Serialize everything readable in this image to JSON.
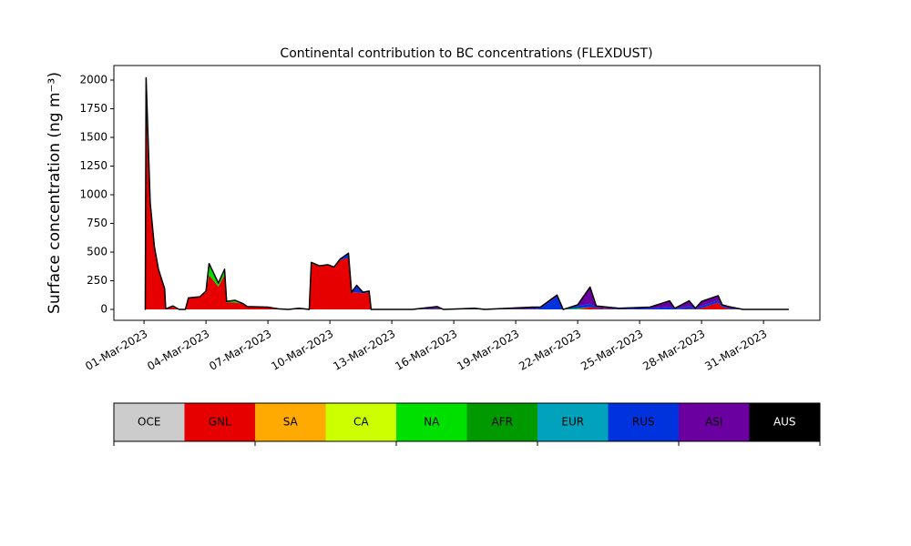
{
  "chart_data": {
    "type": "stacked_area",
    "title": "Continental contribution to BC concentrations (FLEXDUST)",
    "y_label": "Surface concentration (ng m⁻³)",
    "x": [
      0.06,
      0.1,
      0.3,
      0.5,
      0.7,
      1.0,
      1.05,
      1.4,
      1.7,
      2.0,
      2.15,
      2.7,
      3.0,
      3.15,
      3.6,
      3.9,
      4.0,
      4.4,
      4.8,
      5.0,
      6.0,
      6.5,
      7.0,
      7.5,
      8.0,
      8.1,
      8.5,
      8.9,
      9.2,
      9.5,
      9.9,
      10.05,
      10.3,
      10.6,
      10.9,
      11.0,
      13.0,
      14.2,
      14.5,
      16.0,
      16.5,
      18.8,
      19.2,
      20.0,
      20.3,
      21.0,
      21.6,
      21.9,
      23.0,
      24.5,
      25.45,
      25.7,
      26.4,
      26.7,
      27.0,
      27.8,
      28.0,
      28.3,
      29.0,
      31.2
    ],
    "xlim": [
      -1.46,
      32.73
    ],
    "xticks": [
      {
        "value": 0,
        "label": "01-Mar-2023"
      },
      {
        "value": 3,
        "label": "04-Mar-2023"
      },
      {
        "value": 6,
        "label": "07-Mar-2023"
      },
      {
        "value": 9,
        "label": "10-Mar-2023"
      },
      {
        "value": 12,
        "label": "13-Mar-2023"
      },
      {
        "value": 15,
        "label": "16-Mar-2023"
      },
      {
        "value": 18,
        "label": "19-Mar-2023"
      },
      {
        "value": 21,
        "label": "22-Mar-2023"
      },
      {
        "value": 24,
        "label": "25-Mar-2023"
      },
      {
        "value": 27,
        "label": "28-Mar-2023"
      },
      {
        "value": 30,
        "label": "31-Mar-2023"
      }
    ],
    "ylim": [
      -95,
      2127
    ],
    "yticks": [
      0,
      250,
      500,
      750,
      1000,
      1250,
      1500,
      1750,
      2000
    ],
    "series": [
      {
        "name": "OCE",
        "color": "#cccccc",
        "values": [
          0,
          0,
          0,
          0,
          0,
          0,
          0,
          0,
          0,
          0,
          0,
          0,
          0,
          0,
          0,
          0,
          0,
          0,
          0,
          0,
          0,
          0,
          0,
          0,
          0,
          0,
          0,
          0,
          0,
          0,
          0,
          0,
          0,
          0,
          0,
          0,
          0,
          0,
          0,
          0,
          0,
          0,
          0,
          0,
          0,
          0,
          0,
          0,
          0,
          0,
          0,
          0,
          0,
          0,
          0,
          0,
          0,
          0,
          0,
          0
        ]
      },
      {
        "name": "GNL",
        "color": "#e60000",
        "values": [
          0,
          1800,
          900,
          550,
          350,
          180,
          5,
          20,
          0,
          0,
          100,
          110,
          150,
          300,
          200,
          300,
          60,
          60,
          50,
          25,
          20,
          5,
          0,
          10,
          0,
          400,
          380,
          390,
          370,
          430,
          450,
          150,
          150,
          140,
          150,
          0,
          0,
          5,
          0,
          0,
          0,
          5,
          0,
          0,
          0,
          0,
          20,
          10,
          0,
          0,
          0,
          0,
          5,
          0,
          10,
          60,
          20,
          5,
          0,
          0
        ]
      },
      {
        "name": "SA",
        "color": "#ffaa00",
        "values": [
          0,
          0,
          0,
          0,
          0,
          0,
          0,
          0,
          0,
          0,
          0,
          0,
          0,
          0,
          0,
          0,
          0,
          0,
          0,
          0,
          0,
          0,
          0,
          0,
          0,
          0,
          0,
          0,
          0,
          0,
          0,
          0,
          0,
          0,
          0,
          0,
          0,
          0,
          0,
          0,
          0,
          0,
          0,
          0,
          0,
          0,
          0,
          0,
          0,
          0,
          0,
          0,
          0,
          0,
          0,
          0,
          0,
          0,
          0,
          0
        ]
      },
      {
        "name": "CA",
        "color": "#ccff00",
        "values": [
          0,
          0,
          0,
          0,
          0,
          0,
          0,
          0,
          0,
          0,
          0,
          0,
          0,
          0,
          0,
          0,
          0,
          0,
          0,
          0,
          0,
          0,
          0,
          0,
          0,
          0,
          0,
          0,
          0,
          0,
          0,
          0,
          0,
          0,
          0,
          0,
          0,
          0,
          0,
          0,
          0,
          0,
          0,
          0,
          0,
          0,
          0,
          0,
          0,
          0,
          0,
          0,
          0,
          0,
          0,
          0,
          0,
          0,
          0,
          0
        ]
      },
      {
        "name": "NA",
        "color": "#00e000",
        "values": [
          0,
          70,
          30,
          0,
          0,
          0,
          0,
          10,
          0,
          0,
          0,
          0,
          10,
          100,
          30,
          50,
          10,
          20,
          0,
          0,
          0,
          0,
          0,
          0,
          0,
          10,
          0,
          0,
          0,
          0,
          0,
          0,
          0,
          0,
          0,
          0,
          0,
          0,
          0,
          0,
          0,
          0,
          0,
          0,
          0,
          10,
          0,
          0,
          0,
          0,
          0,
          0,
          0,
          0,
          0,
          0,
          0,
          0,
          0,
          0
        ]
      },
      {
        "name": "AFR",
        "color": "#009900",
        "values": [
          0,
          0,
          0,
          0,
          0,
          0,
          0,
          0,
          0,
          0,
          0,
          0,
          0,
          0,
          0,
          0,
          0,
          0,
          0,
          0,
          0,
          0,
          0,
          0,
          0,
          0,
          0,
          0,
          0,
          0,
          0,
          0,
          0,
          0,
          0,
          0,
          0,
          0,
          0,
          0,
          0,
          0,
          0,
          0,
          0,
          0,
          0,
          0,
          0,
          0,
          0,
          0,
          0,
          0,
          0,
          0,
          0,
          0,
          0,
          0
        ]
      },
      {
        "name": "EUR",
        "color": "#00a3bb",
        "values": [
          0,
          0,
          0,
          0,
          0,
          0,
          0,
          0,
          0,
          0,
          0,
          0,
          0,
          0,
          0,
          0,
          0,
          0,
          0,
          0,
          0,
          0,
          0,
          0,
          0,
          0,
          0,
          0,
          0,
          0,
          0,
          0,
          0,
          0,
          0,
          0,
          0,
          0,
          0,
          0,
          0,
          0,
          0,
          0,
          0,
          0,
          0,
          0,
          0,
          0,
          0,
          0,
          0,
          0,
          0,
          0,
          0,
          0,
          0,
          0
        ]
      },
      {
        "name": "RUS",
        "color": "#0033dd",
        "values": [
          0,
          100,
          0,
          0,
          0,
          0,
          0,
          0,
          0,
          0,
          0,
          0,
          0,
          0,
          0,
          0,
          0,
          0,
          0,
          0,
          0,
          0,
          0,
          0,
          0,
          0,
          0,
          0,
          0,
          10,
          40,
          0,
          60,
          10,
          10,
          0,
          0,
          10,
          0,
          10,
          0,
          15,
          10,
          110,
          0,
          20,
          30,
          10,
          5,
          10,
          20,
          5,
          25,
          5,
          20,
          20,
          10,
          10,
          0,
          0
        ]
      },
      {
        "name": "ASI",
        "color": "#6a00a0",
        "values": [
          0,
          50,
          0,
          0,
          0,
          0,
          0,
          0,
          0,
          0,
          0,
          0,
          0,
          0,
          0,
          0,
          0,
          0,
          0,
          0,
          0,
          0,
          0,
          0,
          0,
          0,
          0,
          0,
          0,
          0,
          0,
          0,
          0,
          0,
          0,
          0,
          0,
          10,
          0,
          0,
          0,
          0,
          10,
          15,
          0,
          10,
          145,
          10,
          5,
          10,
          55,
          5,
          45,
          5,
          40,
          40,
          10,
          10,
          0,
          0
        ]
      },
      {
        "name": "AUS",
        "color": "#000000",
        "values": [
          0,
          0,
          0,
          0,
          0,
          0,
          0,
          0,
          0,
          0,
          0,
          0,
          0,
          0,
          0,
          0,
          0,
          0,
          0,
          0,
          0,
          0,
          0,
          0,
          0,
          0,
          0,
          0,
          0,
          0,
          0,
          0,
          0,
          0,
          0,
          0,
          0,
          0,
          0,
          0,
          0,
          0,
          0,
          0,
          0,
          0,
          0,
          0,
          0,
          0,
          0,
          0,
          0,
          0,
          0,
          0,
          0,
          0,
          0,
          0
        ]
      }
    ]
  }
}
